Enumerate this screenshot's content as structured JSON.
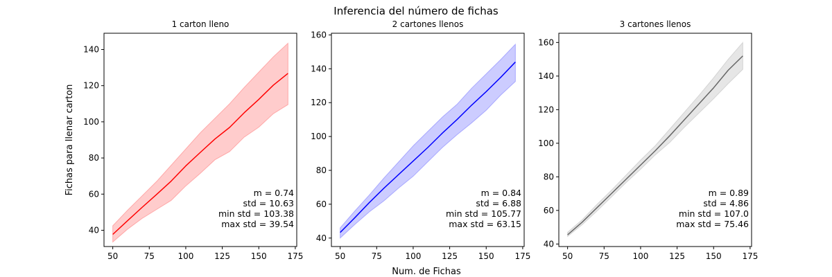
{
  "figure": {
    "suptitle": "Inferencia del número de fichas",
    "xlabel": "Num. de Fichas",
    "ylabel": "Fichas para llenar carton"
  },
  "chart_data": [
    {
      "type": "line",
      "title": "1 carton lleno",
      "color": "#ff0000",
      "band_color": "#ff0000",
      "x": [
        50,
        60,
        70,
        80,
        90,
        100,
        110,
        120,
        130,
        140,
        150,
        160,
        170
      ],
      "y": [
        37.7,
        45.2,
        52.6,
        59.8,
        67.2,
        75.6,
        83.1,
        90.5,
        96.9,
        105.0,
        112.4,
        120.3,
        126.8
      ],
      "lower": [
        33.5,
        40.5,
        46.5,
        51.5,
        56.5,
        64.5,
        71.5,
        79.0,
        83.5,
        91.5,
        97.0,
        104.5,
        109.5
      ],
      "upper": [
        42.5,
        51.0,
        59.0,
        67.0,
        76.0,
        85.0,
        94.0,
        102.0,
        110.0,
        119.0,
        127.5,
        136.0,
        143.5
      ],
      "xlim": [
        44,
        176
      ],
      "ylim": [
        31,
        149
      ],
      "xticks": [
        50,
        75,
        100,
        125,
        150,
        175
      ],
      "yticks": [
        40,
        60,
        80,
        100,
        120,
        140
      ],
      "stats": [
        "m  = 0.74",
        "std = 10.63",
        "min  std = 103.38",
        "max std = 39.54"
      ]
    },
    {
      "type": "line",
      "title": "2 cartones llenos",
      "color": "#0000ff",
      "band_color": "#0000ff",
      "x": [
        50,
        60,
        70,
        80,
        90,
        100,
        110,
        120,
        130,
        140,
        150,
        160,
        170
      ],
      "y": [
        43.3,
        52.0,
        61.0,
        69.5,
        77.5,
        85.5,
        93.5,
        102.0,
        110.0,
        118.5,
        126.5,
        135.0,
        144.0
      ],
      "lower": [
        40.0,
        48.0,
        55.5,
        62.0,
        69.5,
        76.5,
        85.0,
        93.5,
        101.0,
        108.0,
        115.5,
        124.5,
        132.5
      ],
      "upper": [
        46.0,
        56.0,
        65.5,
        75.5,
        85.0,
        94.5,
        103.0,
        111.5,
        119.0,
        128.5,
        137.0,
        145.5,
        154.5
      ],
      "xlim": [
        44,
        176
      ],
      "ylim": [
        35,
        161
      ],
      "xticks": [
        50,
        75,
        100,
        125,
        150,
        175
      ],
      "yticks": [
        40,
        60,
        80,
        100,
        120,
        140,
        160
      ],
      "stats": [
        "m  = 0.84",
        "std = 6.88",
        "min  std = 105.77",
        "max std = 63.15"
      ]
    },
    {
      "type": "line",
      "title": "3 cartones llenos",
      "color": "#666666",
      "band_color": "#808080",
      "x": [
        50,
        60,
        70,
        80,
        90,
        100,
        110,
        120,
        130,
        140,
        150,
        160,
        170
      ],
      "y": [
        45.5,
        53.0,
        61.5,
        70.0,
        78.5,
        87.0,
        95.5,
        104.5,
        114.0,
        123.5,
        133.0,
        143.5,
        152.0
      ],
      "lower": [
        44.5,
        51.5,
        59.5,
        68.0,
        76.5,
        84.5,
        93.0,
        100.5,
        109.5,
        118.0,
        126.5,
        135.5,
        144.0
      ],
      "upper": [
        47.0,
        54.5,
        63.5,
        72.0,
        81.0,
        90.0,
        98.5,
        108.5,
        118.5,
        128.5,
        139.0,
        150.0,
        160.0
      ],
      "xlim": [
        44,
        176
      ],
      "ylim": [
        38.5,
        165.5
      ],
      "xticks": [
        50,
        75,
        100,
        125,
        150,
        175
      ],
      "yticks": [
        40,
        60,
        80,
        100,
        120,
        140,
        160
      ],
      "stats": [
        "m  = 0.89",
        "std = 4.86",
        "min  std = 107.0",
        "max std = 75.46"
      ]
    }
  ]
}
